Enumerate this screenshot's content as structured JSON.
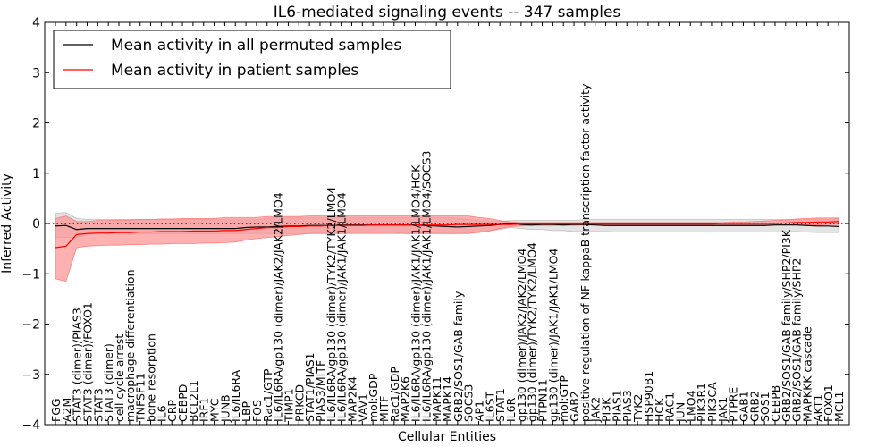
{
  "chart_data": {
    "type": "line",
    "title": "IL6-mediated signaling events -- 347 samples",
    "xlabel": "Cellular Entities",
    "ylabel": "Inferred Activity",
    "ylim": [
      -4,
      4
    ],
    "yticks": [
      -4,
      -3,
      -2,
      -1,
      0,
      1,
      2,
      3,
      4
    ],
    "grid": false,
    "legend_position": "top-left",
    "categories": [
      "FGG",
      "A2M",
      "STAT3 (dimer)/PIAS3",
      "STAT3 (dimer)/FOXO1",
      "STAT3",
      "STAT3 (dimer)",
      "cell cycle arrest",
      "macrophage differentiation",
      "TNFSF11",
      "bone resorption",
      "IL6",
      "CRP",
      "CEBPD",
      "BCL2L1",
      "IRF1",
      "MYC",
      "JUNB",
      "IL6/IL6RA",
      "LBP",
      "FOS",
      "Rac1/GTP",
      "IL6/IL6RA/gp130 (dimer)/JAK2/JAK2/LMO4",
      "TIMP1",
      "PRKCD",
      "STAT1/PIAS1",
      "PIAS3/MITF",
      "IL6/IL6RA/gp130 (dimer)/TYK2/TYK2/LMO4",
      "IL6/IL6RA/gp130 (dimer)/JAK1/JAK1/LMO4",
      "MAP2K4",
      "VAV1",
      "mol:GDP",
      "MITF",
      "Rac1/GDP",
      "MAP2K6",
      "IL6/IL6RA/gp130 (dimer)/JAK1/JAK1/LMO4/HCK",
      "IL6/IL6RA/gp130 (dimer)/JAK1/JAK1/LMO4/SOCS3",
      "MAPK11",
      "MAPK14",
      "GRB2/SOS1/GAB family",
      "SOCS3",
      "AP1",
      "IL6ST",
      "STAT1",
      "IL6R",
      "gp130 (dimer)/JAK2/JAK2/LMO4",
      "gp130 (dimer)/TYK2/TYK2/LMO4",
      "PTPN11",
      "gp130 (dimer)/JAK1/JAK1/LMO4",
      "mol:GTP",
      "GAB2",
      "positive regulation of NF-kappaB transcription factor activity",
      "JAK2",
      "PI3K",
      "PIAS1",
      "PIAS3",
      "TYK2",
      "HSP90B1",
      "HCK",
      "RAC1",
      "JUN",
      "LMO4",
      "PIK3R1",
      "PIK3CA",
      "JAK1",
      "PTPRE",
      "GAB1",
      "GRB2",
      "SOS1",
      "CEBPB",
      "GRB2/SOS1/GAB family/SHP2/PI3K",
      "GRB2/SOS1/GAB family/SHP2",
      "MAPKKK cascade",
      "AKT1",
      "FOXO1",
      "MCL1"
    ],
    "series": [
      {
        "name": "Mean activity in all permuted samples",
        "color": "#000000",
        "values": [
          -0.05,
          -0.04,
          -0.12,
          -0.1,
          -0.1,
          -0.1,
          -0.1,
          -0.1,
          -0.1,
          -0.1,
          -0.1,
          -0.1,
          -0.1,
          -0.1,
          -0.1,
          -0.1,
          -0.1,
          -0.1,
          -0.08,
          -0.07,
          -0.07,
          -0.06,
          -0.05,
          -0.05,
          -0.04,
          -0.04,
          -0.04,
          -0.03,
          -0.03,
          -0.03,
          -0.03,
          -0.03,
          -0.03,
          -0.03,
          -0.03,
          -0.04,
          -0.05,
          -0.06,
          -0.07,
          -0.06,
          -0.05,
          -0.04,
          -0.02,
          0.0,
          -0.02,
          -0.03,
          -0.02,
          -0.02,
          -0.03,
          -0.02,
          -0.02,
          -0.03,
          -0.04,
          -0.04,
          -0.04,
          -0.04,
          -0.04,
          -0.04,
          -0.04,
          -0.04,
          -0.04,
          -0.04,
          -0.04,
          -0.04,
          -0.04,
          -0.04,
          -0.04,
          -0.04,
          -0.03,
          -0.03,
          -0.03,
          -0.04,
          -0.05,
          -0.05,
          -0.06
        ],
        "band_lower": [
          -0.28,
          -0.28,
          -0.28,
          -0.22,
          -0.2,
          -0.2,
          -0.2,
          -0.2,
          -0.2,
          -0.2,
          -0.2,
          -0.2,
          -0.2,
          -0.2,
          -0.2,
          -0.2,
          -0.2,
          -0.2,
          -0.2,
          -0.2,
          -0.2,
          -0.2,
          -0.2,
          -0.2,
          -0.2,
          -0.2,
          -0.2,
          -0.2,
          -0.18,
          -0.18,
          -0.18,
          -0.18,
          -0.18,
          -0.2,
          -0.2,
          -0.2,
          -0.2,
          -0.2,
          -0.2,
          -0.2,
          -0.16,
          -0.14,
          -0.12,
          -0.08,
          -0.1,
          -0.12,
          -0.12,
          -0.14,
          -0.14,
          -0.16,
          -0.16,
          -0.16,
          -0.16,
          -0.17,
          -0.17,
          -0.17,
          -0.17,
          -0.17,
          -0.17,
          -0.17,
          -0.17,
          -0.17,
          -0.17,
          -0.17,
          -0.17,
          -0.17,
          -0.17,
          -0.17,
          -0.17,
          -0.16,
          -0.16,
          -0.17,
          -0.18,
          -0.18,
          -0.18
        ],
        "band_upper": [
          0.2,
          0.22,
          0.1,
          0.08,
          0.08,
          0.08,
          0.08,
          0.08,
          0.08,
          0.08,
          0.08,
          0.08,
          0.08,
          0.08,
          0.08,
          0.08,
          0.08,
          0.08,
          0.08,
          0.08,
          0.1,
          0.12,
          0.12,
          0.12,
          0.12,
          0.12,
          0.12,
          0.12,
          0.12,
          0.12,
          0.12,
          0.12,
          0.12,
          0.12,
          0.12,
          0.12,
          0.12,
          0.12,
          0.1,
          0.08,
          0.06,
          0.04,
          0.04,
          0.06,
          0.06,
          0.06,
          0.06,
          0.06,
          0.06,
          0.06,
          0.08,
          0.08,
          0.08,
          0.08,
          0.08,
          0.08,
          0.08,
          0.08,
          0.08,
          0.08,
          0.08,
          0.08,
          0.08,
          0.08,
          0.08,
          0.08,
          0.08,
          0.08,
          0.08,
          0.08,
          0.08,
          0.08,
          0.08,
          0.08,
          0.1
        ]
      },
      {
        "name": "Mean activity in patient samples",
        "color": "#ff0000",
        "band_color": "#ff9090",
        "values": [
          -0.48,
          -0.45,
          -0.22,
          -0.2,
          -0.19,
          -0.19,
          -0.18,
          -0.18,
          -0.17,
          -0.17,
          -0.16,
          -0.16,
          -0.16,
          -0.15,
          -0.15,
          -0.15,
          -0.14,
          -0.14,
          -0.12,
          -0.1,
          -0.08,
          -0.08,
          -0.06,
          -0.06,
          -0.05,
          -0.05,
          -0.04,
          -0.04,
          -0.04,
          -0.04,
          -0.03,
          -0.03,
          -0.03,
          -0.03,
          -0.03,
          -0.03,
          -0.03,
          -0.03,
          -0.02,
          -0.02,
          -0.02,
          -0.02,
          -0.02,
          -0.02,
          -0.01,
          -0.01,
          -0.01,
          -0.01,
          -0.01,
          -0.01,
          -0.01,
          -0.01,
          -0.01,
          -0.01,
          -0.01,
          -0.01,
          -0.01,
          -0.01,
          -0.01,
          -0.01,
          -0.01,
          -0.01,
          -0.01,
          0.0,
          0.0,
          0.0,
          0.0,
          0.0,
          0.0,
          0.01,
          0.02,
          0.02,
          0.03,
          0.03,
          0.04
        ],
        "band_lower": [
          -1.1,
          -1.15,
          -0.48,
          -0.45,
          -0.44,
          -0.43,
          -0.43,
          -0.42,
          -0.42,
          -0.41,
          -0.41,
          -0.4,
          -0.4,
          -0.4,
          -0.39,
          -0.39,
          -0.38,
          -0.37,
          -0.33,
          -0.3,
          -0.28,
          -0.26,
          -0.24,
          -0.22,
          -0.2,
          -0.2,
          -0.2,
          -0.2,
          -0.2,
          -0.2,
          -0.2,
          -0.2,
          -0.2,
          -0.2,
          -0.2,
          -0.2,
          -0.2,
          -0.2,
          -0.2,
          -0.2,
          -0.18,
          -0.15,
          -0.1,
          -0.06,
          -0.05,
          -0.04,
          -0.04,
          -0.04,
          -0.04,
          -0.04,
          -0.03,
          -0.03,
          -0.03,
          -0.03,
          -0.03,
          -0.03,
          -0.03,
          -0.03,
          -0.03,
          -0.03,
          -0.03,
          -0.03,
          -0.03,
          -0.03,
          -0.03,
          -0.03,
          -0.03,
          -0.03,
          -0.03,
          -0.03,
          -0.03,
          -0.03,
          -0.03,
          -0.02,
          -0.02
        ],
        "band_upper": [
          0.1,
          0.15,
          0.04,
          0.04,
          0.06,
          0.06,
          0.07,
          0.07,
          0.08,
          0.08,
          0.09,
          0.09,
          0.1,
          0.1,
          0.1,
          0.1,
          0.12,
          0.12,
          0.12,
          0.12,
          0.14,
          0.14,
          0.14,
          0.14,
          0.15,
          0.15,
          0.15,
          0.15,
          0.15,
          0.15,
          0.15,
          0.15,
          0.15,
          0.15,
          0.15,
          0.15,
          0.15,
          0.15,
          0.15,
          0.15,
          0.12,
          0.1,
          0.06,
          0.03,
          0.02,
          0.02,
          0.02,
          0.02,
          0.02,
          0.02,
          0.02,
          0.02,
          0.02,
          0.02,
          0.02,
          0.02,
          0.02,
          0.02,
          0.02,
          0.02,
          0.02,
          0.02,
          0.02,
          0.02,
          0.03,
          0.03,
          0.04,
          0.05,
          0.06,
          0.07,
          0.09,
          0.1,
          0.11,
          0.11,
          0.11
        ]
      }
    ],
    "baseline": 0
  }
}
